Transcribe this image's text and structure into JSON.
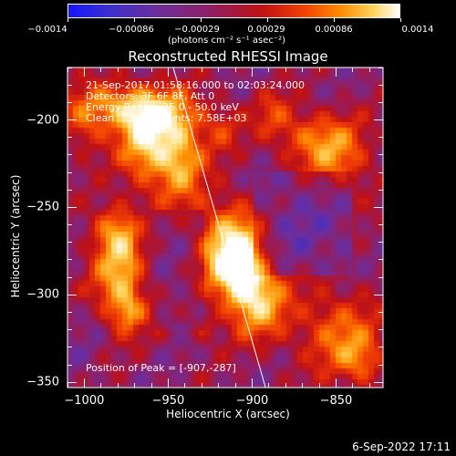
{
  "chart_data": {
    "type": "heatmap",
    "title": "Reconstructed RHESSI Image",
    "xlabel": "Heliocentric X (arcsec)",
    "ylabel": "Heliocentric Y (arcsec)",
    "xlim": [
      -1010,
      -822
    ],
    "ylim": [
      -353,
      -170
    ],
    "x_ticks": [
      -1000,
      -950,
      -900,
      -850
    ],
    "x_tick_labels": [
      "−1000",
      "−950",
      "−900",
      "−850"
    ],
    "y_ticks": [
      -200,
      -250,
      -300,
      -350
    ],
    "y_tick_labels": [
      "−200",
      "−250",
      "−300",
      "−350"
    ],
    "colorbar": {
      "min": -0.0014,
      "max": 0.0014,
      "ticks": [
        -0.0014,
        -0.00086,
        -0.00029,
        0.00029,
        0.00086,
        0.0014
      ],
      "tick_labels": [
        "−0.0014",
        "−0.00086",
        "−0.00029",
        "0.00029",
        "0.00086",
        "0.0014"
      ],
      "units_label": "(photons cm⁻² s⁻¹ asec⁻²)",
      "colors": [
        "#1515ff",
        "#3a2fcf",
        "#6a2e9e",
        "#8f1f68",
        "#bf1015",
        "#ef3a05",
        "#ff8a00",
        "#ffd35a",
        "#ffffff"
      ]
    },
    "annotations": {
      "line1": "21-Sep-2017 01:58:16.000 to 02:03:24.000",
      "line2": "Detectors: 3F 6F 8F, Att 0",
      "line3": "Energy Range: 25.0 - 50.0 keV",
      "line4": "Clean     Total counts: 7.58E+03",
      "peak": "Position of Peak = [-907,-287]"
    },
    "hotspots": [
      {
        "x": -962,
        "y": -213,
        "amp": 1.0,
        "sx": 12,
        "sy": 18
      },
      {
        "x": -942,
        "y": -222,
        "amp": 0.8,
        "sx": 10,
        "sy": 18
      },
      {
        "x": -955,
        "y": -196,
        "amp": 0.55,
        "sx": 20,
        "sy": 10
      },
      {
        "x": -985,
        "y": -191,
        "amp": 0.65,
        "sx": 16,
        "sy": 9
      },
      {
        "x": -1000,
        "y": -205,
        "amp": 0.45,
        "sx": 9,
        "sy": 10
      },
      {
        "x": -907,
        "y": -287,
        "amp": 1.05,
        "sx": 11,
        "sy": 15
      },
      {
        "x": -915,
        "y": -270,
        "amp": 0.85,
        "sx": 14,
        "sy": 18
      },
      {
        "x": -895,
        "y": -305,
        "amp": 0.75,
        "sx": 12,
        "sy": 15
      },
      {
        "x": -978,
        "y": -287,
        "amp": 0.9,
        "sx": 12,
        "sy": 17
      },
      {
        "x": -982,
        "y": -262,
        "amp": 0.6,
        "sx": 10,
        "sy": 10
      },
      {
        "x": -973,
        "y": -310,
        "amp": 0.65,
        "sx": 9,
        "sy": 9
      },
      {
        "x": -848,
        "y": -222,
        "amp": 0.65,
        "sx": 14,
        "sy": 15
      },
      {
        "x": -868,
        "y": -209,
        "amp": 0.5,
        "sx": 15,
        "sy": 11
      },
      {
        "x": -888,
        "y": -196,
        "amp": 0.35,
        "sx": 8,
        "sy": 10
      },
      {
        "x": -850,
        "y": -320,
        "amp": 0.6,
        "sx": 18,
        "sy": 17
      },
      {
        "x": -835,
        "y": -338,
        "amp": 0.55,
        "sx": 10,
        "sy": 10
      },
      {
        "x": -918,
        "y": -205,
        "amp": 0.35,
        "sx": 8,
        "sy": 10
      },
      {
        "x": -930,
        "y": -318,
        "amp": 0.3,
        "sx": 7,
        "sy": 7
      }
    ],
    "limb_line": {
      "start": [
        -947,
        -170
      ],
      "end": [
        -892,
        -353
      ]
    }
  },
  "footer": {
    "timestamp": "6-Sep-2022 17:11"
  }
}
